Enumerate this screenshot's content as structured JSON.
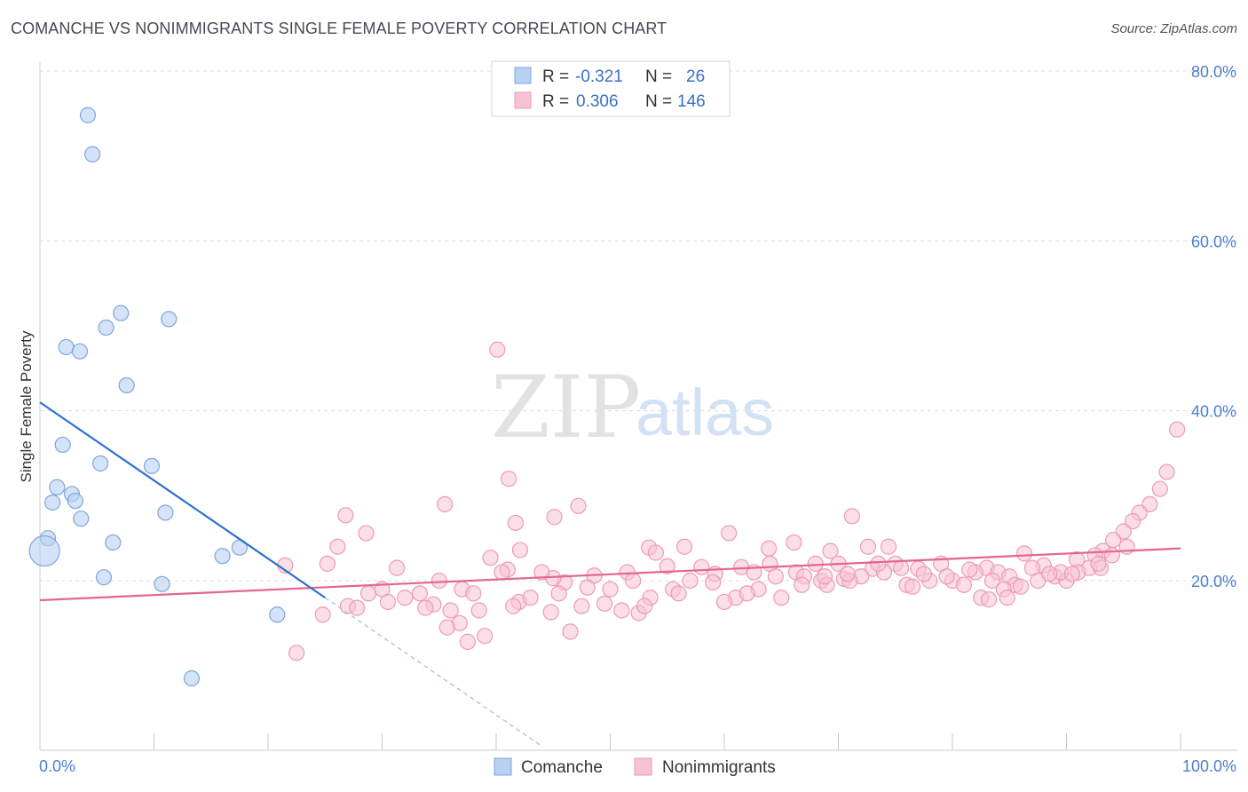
{
  "header": {
    "title": "COMANCHE VS NONIMMIGRANTS SINGLE FEMALE POVERTY CORRELATION CHART",
    "source": "Source: ZipAtlas.com"
  },
  "watermark": {
    "zip": "ZIP",
    "atlas": "atlas"
  },
  "legend": {
    "rows": [
      {
        "r_label": "R =",
        "r_value": "-0.321",
        "n_label": "N =",
        "n_value": "26"
      },
      {
        "r_label": "R =",
        "r_value": "0.306",
        "n_label": "N =",
        "n_value": "146"
      }
    ]
  },
  "chart_data": {
    "type": "scatter",
    "title": "COMANCHE VS NONIMMIGRANTS SINGLE FEMALE POVERTY CORRELATION CHART",
    "xlabel": "",
    "ylabel": "Single Female Poverty",
    "xlim": [
      0,
      100
    ],
    "ylim": [
      0,
      82
    ],
    "x_tick_labels": [
      "0.0%",
      "100.0%"
    ],
    "y_ticks": [
      20,
      40,
      60,
      80
    ],
    "y_tick_labels": [
      "20.0%",
      "40.0%",
      "60.0%",
      "80.0%"
    ],
    "grid": true,
    "legend_position": "top-center",
    "colors": {
      "comanche_fill": "#b8d0f2",
      "comanche_stroke": "#7fa6dc",
      "comanche_line": "#2e6fd0",
      "nonimm_fill": "#f7c3d3",
      "nonimm_stroke": "#ec9bb4",
      "nonimm_line": "#e36590"
    },
    "series": [
      {
        "name": "Comanche",
        "trend": {
          "x0": 0,
          "y0": 41.0,
          "x1": 25,
          "y1": 18.0,
          "dash_to_x": 44
        },
        "points": [
          [
            4.2,
            74.8
          ],
          [
            4.6,
            70.2
          ],
          [
            7.1,
            51.5
          ],
          [
            11.3,
            50.8
          ],
          [
            5.8,
            49.8
          ],
          [
            2.3,
            47.5
          ],
          [
            3.5,
            47.0
          ],
          [
            7.6,
            43.0
          ],
          [
            2.0,
            36.0
          ],
          [
            5.3,
            33.8
          ],
          [
            9.8,
            33.5
          ],
          [
            1.5,
            31.0
          ],
          [
            2.8,
            30.2
          ],
          [
            3.1,
            29.4
          ],
          [
            1.1,
            29.2
          ],
          [
            11.0,
            28.0
          ],
          [
            3.6,
            27.3
          ],
          [
            0.7,
            25.0
          ],
          [
            6.4,
            24.5
          ],
          [
            17.5,
            23.9
          ],
          [
            16.0,
            22.9
          ],
          [
            0.4,
            23.5
          ],
          [
            5.6,
            20.4
          ],
          [
            10.7,
            19.6
          ],
          [
            20.8,
            16.0
          ],
          [
            13.3,
            8.5
          ]
        ],
        "sizes": {
          "0.4,23.5": 2.0
        }
      },
      {
        "name": "Nonimmigrants",
        "trend": {
          "x0": 0,
          "y0": 17.7,
          "x1": 100,
          "y1": 23.8
        },
        "points": [
          [
            40.1,
            47.2
          ],
          [
            99.7,
            37.8
          ],
          [
            41.1,
            32.0
          ],
          [
            98.8,
            32.8
          ],
          [
            98.2,
            30.8
          ],
          [
            35.5,
            29.0
          ],
          [
            47.2,
            28.8
          ],
          [
            97.3,
            29.0
          ],
          [
            26.8,
            27.7
          ],
          [
            45.1,
            27.5
          ],
          [
            71.2,
            27.6
          ],
          [
            41.7,
            26.8
          ],
          [
            96.4,
            28.0
          ],
          [
            95.8,
            27.0
          ],
          [
            95.0,
            25.8
          ],
          [
            28.6,
            25.6
          ],
          [
            60.4,
            25.6
          ],
          [
            94.1,
            24.8
          ],
          [
            26.1,
            24.0
          ],
          [
            42.1,
            23.6
          ],
          [
            53.4,
            23.9
          ],
          [
            56.5,
            24.0
          ],
          [
            63.9,
            23.8
          ],
          [
            66.1,
            24.5
          ],
          [
            69.3,
            23.5
          ],
          [
            72.6,
            24.0
          ],
          [
            74.4,
            24.0
          ],
          [
            86.3,
            23.2
          ],
          [
            90.9,
            22.5
          ],
          [
            39.5,
            22.7
          ],
          [
            54.0,
            23.3
          ],
          [
            93.2,
            23.5
          ],
          [
            92.5,
            23.0
          ],
          [
            21.5,
            21.8
          ],
          [
            25.2,
            22.0
          ],
          [
            31.3,
            21.5
          ],
          [
            41.0,
            21.3
          ],
          [
            55.0,
            21.7
          ],
          [
            58.0,
            21.6
          ],
          [
            61.5,
            21.6
          ],
          [
            64.0,
            22.0
          ],
          [
            68.0,
            22.0
          ],
          [
            70.0,
            22.0
          ],
          [
            75.0,
            22.0
          ],
          [
            79.0,
            22.0
          ],
          [
            83.0,
            21.5
          ],
          [
            88.0,
            21.8
          ],
          [
            92.0,
            21.5
          ],
          [
            77.0,
            21.4
          ],
          [
            73.0,
            21.4
          ],
          [
            66.3,
            21.0
          ],
          [
            62.6,
            21.0
          ],
          [
            59.2,
            20.8
          ],
          [
            51.5,
            21.0
          ],
          [
            48.6,
            20.6
          ],
          [
            46.0,
            19.8
          ],
          [
            45.0,
            20.3
          ],
          [
            35.0,
            20.0
          ],
          [
            33.3,
            18.5
          ],
          [
            37.0,
            19.0
          ],
          [
            42.0,
            17.5
          ],
          [
            43.0,
            18.0
          ],
          [
            28.8,
            18.5
          ],
          [
            30.0,
            19.0
          ],
          [
            34.5,
            17.2
          ],
          [
            38.0,
            18.5
          ],
          [
            48.0,
            19.2
          ],
          [
            50.0,
            19.0
          ],
          [
            52.0,
            20.0
          ],
          [
            53.5,
            18.0
          ],
          [
            55.5,
            19.0
          ],
          [
            57.0,
            20.0
          ],
          [
            59.0,
            19.8
          ],
          [
            61.0,
            18.0
          ],
          [
            63.0,
            19.0
          ],
          [
            65.0,
            18.0
          ],
          [
            67.0,
            20.5
          ],
          [
            68.5,
            20.0
          ],
          [
            70.5,
            20.2
          ],
          [
            72.0,
            20.5
          ],
          [
            74.0,
            21.0
          ],
          [
            76.0,
            19.5
          ],
          [
            78.0,
            20.0
          ],
          [
            80.0,
            20.0
          ],
          [
            82.0,
            21.0
          ],
          [
            84.0,
            21.0
          ],
          [
            85.0,
            20.5
          ],
          [
            87.0,
            21.5
          ],
          [
            89.0,
            20.5
          ],
          [
            91.0,
            21.0
          ],
          [
            90.0,
            20.0
          ],
          [
            93.0,
            21.5
          ],
          [
            94.0,
            23.0
          ],
          [
            71.0,
            20.0
          ],
          [
            69.0,
            19.5
          ],
          [
            76.5,
            19.3
          ],
          [
            81.0,
            19.5
          ],
          [
            85.5,
            19.5
          ],
          [
            87.5,
            20.0
          ],
          [
            89.5,
            21.0
          ],
          [
            24.8,
            16.0
          ],
          [
            27.0,
            17.0
          ],
          [
            30.5,
            17.5
          ],
          [
            33.8,
            16.8
          ],
          [
            36.8,
            15.0
          ],
          [
            38.5,
            16.5
          ],
          [
            47.5,
            17.0
          ],
          [
            49.5,
            17.3
          ],
          [
            51.0,
            16.5
          ],
          [
            52.5,
            16.2
          ],
          [
            44.8,
            16.3
          ],
          [
            36.0,
            16.5
          ],
          [
            41.5,
            17.0
          ],
          [
            22.5,
            11.5
          ],
          [
            39.0,
            13.5
          ],
          [
            37.5,
            12.8
          ],
          [
            46.5,
            14.0
          ],
          [
            35.7,
            14.5
          ],
          [
            45.5,
            18.5
          ],
          [
            53.0,
            17.0
          ],
          [
            56.0,
            18.5
          ],
          [
            60.0,
            17.5
          ],
          [
            62.0,
            18.5
          ],
          [
            64.5,
            20.5
          ],
          [
            66.8,
            19.5
          ],
          [
            68.8,
            20.5
          ],
          [
            70.8,
            20.8
          ],
          [
            73.5,
            22.0
          ],
          [
            75.5,
            21.5
          ],
          [
            77.5,
            20.8
          ],
          [
            79.5,
            20.5
          ],
          [
            81.5,
            21.3
          ],
          [
            83.5,
            20.0
          ],
          [
            84.5,
            19.0
          ],
          [
            86.0,
            19.3
          ],
          [
            88.5,
            20.8
          ],
          [
            90.5,
            20.8
          ],
          [
            92.8,
            22.0
          ],
          [
            95.3,
            24.0
          ],
          [
            82.5,
            18.0
          ],
          [
            83.2,
            17.8
          ],
          [
            84.8,
            18.0
          ],
          [
            44.0,
            21.0
          ],
          [
            32.0,
            18.0
          ],
          [
            27.8,
            16.8
          ],
          [
            40.5,
            21.0
          ]
        ]
      }
    ]
  },
  "bottom_legend": {
    "items": [
      "Comanche",
      "Nonimmigrants"
    ]
  }
}
